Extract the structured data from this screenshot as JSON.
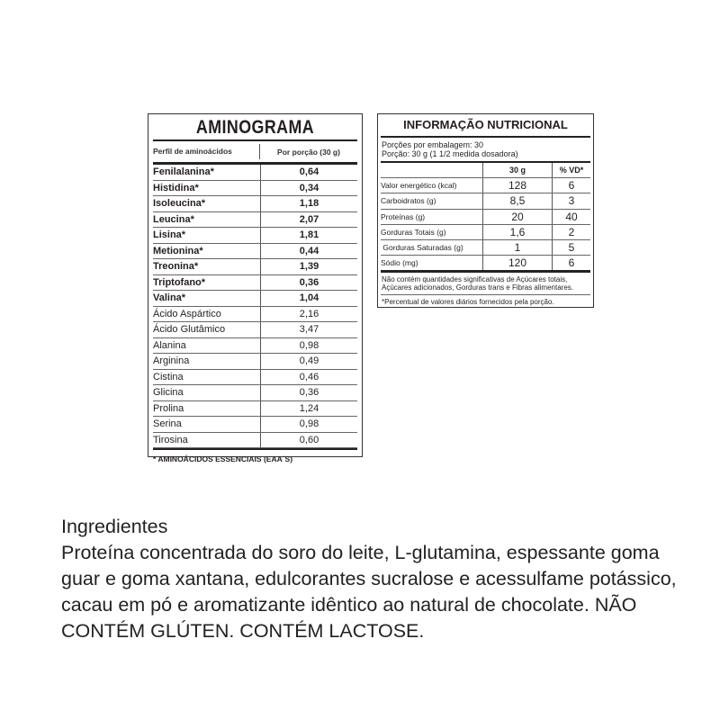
{
  "aminograma": {
    "title": "AMINOGRAMA",
    "col1": "Perfil de aminoácidos",
    "col2": "Por porção (30 g)",
    "rows": [
      {
        "name": "Fenilalanina*",
        "value": "0,64",
        "essential": true
      },
      {
        "name": "Histidina*",
        "value": "0,34",
        "essential": true
      },
      {
        "name": "Isoleucina*",
        "value": "1,18",
        "essential": true
      },
      {
        "name": "Leucina*",
        "value": "2,07",
        "essential": true
      },
      {
        "name": "Lisina*",
        "value": "1,81",
        "essential": true
      },
      {
        "name": "Metionina*",
        "value": "0,44",
        "essential": true
      },
      {
        "name": "Treonina*",
        "value": "1,39",
        "essential": true
      },
      {
        "name": "Triptofano*",
        "value": "0,36",
        "essential": true
      },
      {
        "name": "Valina*",
        "value": "1,04",
        "essential": true
      },
      {
        "name": "Ácido Aspártico",
        "value": "2,16",
        "essential": false
      },
      {
        "name": "Ácido Glutâmico",
        "value": "3,47",
        "essential": false
      },
      {
        "name": "Alanina",
        "value": "0,98",
        "essential": false
      },
      {
        "name": "Arginina",
        "value": "0,49",
        "essential": false
      },
      {
        "name": "Cistina",
        "value": "0,46",
        "essential": false
      },
      {
        "name": "Glicina",
        "value": "0,36",
        "essential": false
      },
      {
        "name": "Prolina",
        "value": "1,24",
        "essential": false
      },
      {
        "name": "Serina",
        "value": "0,98",
        "essential": false
      },
      {
        "name": "Tirosina",
        "value": "0,60",
        "essential": false
      }
    ],
    "footer": "* AMINOÁCIDOS ESSENCIAIS (EAA´S)"
  },
  "nutricional": {
    "title": "INFORMAÇÃO NUTRICIONAL",
    "porcoes": "Porções por embalagem: 30",
    "porcao": "Porção: 30 g (1 1/2 medida dosadora)",
    "col_amount": "30 g",
    "col_vd": "% VD*",
    "rows": [
      {
        "label": "Valor energético (kcal)",
        "amount": "128",
        "vd": "6"
      },
      {
        "label": "Carboidratos (g)",
        "amount": "8,5",
        "vd": "3"
      },
      {
        "label": "Proteínas (g)",
        "amount": "20",
        "vd": "40"
      },
      {
        "label": "Gorduras Totais (g)",
        "amount": "1,6",
        "vd": "2"
      },
      {
        "label": " Gorduras Saturadas (g)",
        "amount": "1",
        "vd": "5"
      },
      {
        "label": "Sódio (mg)",
        "amount": "120",
        "vd": "6"
      }
    ],
    "note": "Não contém quantidades significativas de Açúcares totais, Açúcares adicionados, Gorduras trans e Fibras alimentares.",
    "vd_note": "*Percentual de valores diários fornecidos pela porção."
  },
  "ingredientes": {
    "title": "Ingredientes",
    "text": "Proteína concentrada do soro do leite, L-glutamina, espessante goma guar e goma xantana, edulcorantes sucralose e acessulfame potássico, cacau em pó e aromatizante idêntico ao natural de chocolate. NÃO CONTÉM GLÚTEN. CONTÉM LACTOSE."
  }
}
